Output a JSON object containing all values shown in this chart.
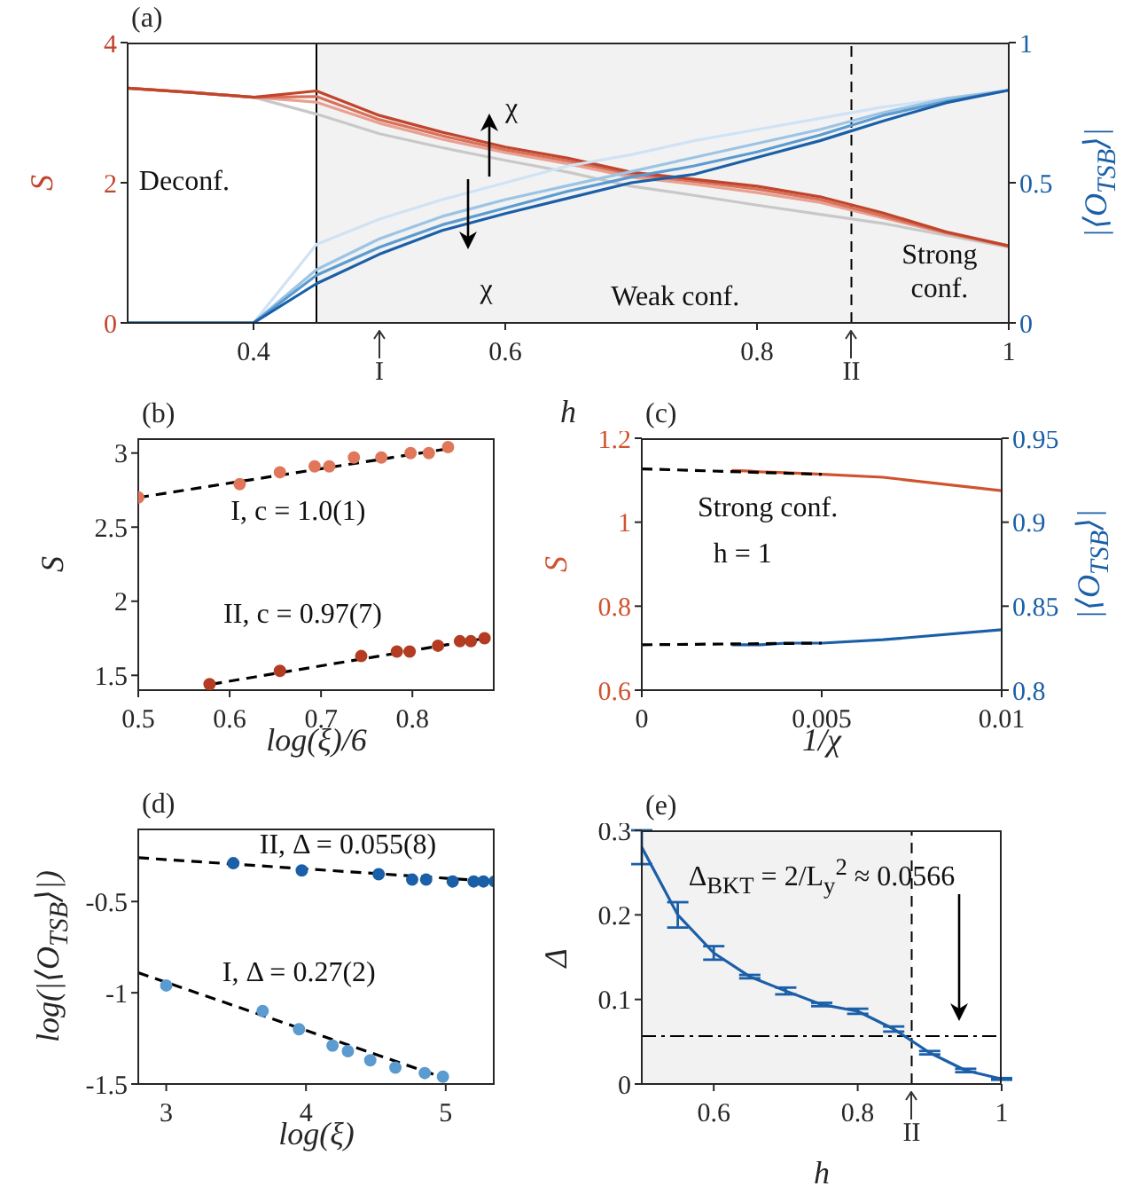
{
  "chart_data": [
    {
      "type": "line",
      "title": "(a)",
      "xlabel": "h",
      "ylabel": "S",
      "y2label": "|⟨O$_{TSB}$⟩|",
      "xlim": [
        0.3,
        1
      ],
      "xticks": [
        0.4,
        0.6,
        0.8,
        1
      ],
      "ylim": [
        0,
        4
      ],
      "yticks": [
        0,
        2,
        4
      ],
      "y2lim": [
        0,
        1
      ],
      "y2ticks": [
        0,
        0.5,
        1
      ],
      "x": [
        0.3,
        0.35,
        0.4,
        0.45,
        0.5,
        0.55,
        0.6,
        0.65,
        0.7,
        0.75,
        0.8,
        0.85,
        0.9,
        0.95,
        1
      ],
      "series": [
        {
          "color": "#c8c8c8",
          "values": [
            3.35,
            3.29,
            3.22,
            2.98,
            2.7,
            2.5,
            2.32,
            2.15,
            1.95,
            1.82,
            1.68,
            1.55,
            1.42,
            1.25,
            1.08
          ]
        },
        {
          "color": "#e8a090",
          "values": [
            3.35,
            3.29,
            3.22,
            3.15,
            2.85,
            2.62,
            2.43,
            2.27,
            2.08,
            1.98,
            1.86,
            1.72,
            1.5,
            1.28,
            1.09
          ]
        },
        {
          "color": "#d9705a",
          "values": [
            3.35,
            3.29,
            3.22,
            3.23,
            2.9,
            2.67,
            2.47,
            2.31,
            2.12,
            2.02,
            1.91,
            1.76,
            1.53,
            1.29,
            1.1
          ]
        },
        {
          "color": "#c0452c",
          "values": [
            3.35,
            3.29,
            3.22,
            3.31,
            2.96,
            2.72,
            2.51,
            2.35,
            2.15,
            2.05,
            1.95,
            1.8,
            1.57,
            1.3,
            1.1
          ]
        },
        {
          "color": "#cfe3f5",
          "axis": "y2",
          "values": [
            0,
            0,
            0,
            0.28,
            0.37,
            0.44,
            0.5,
            0.56,
            0.6,
            0.65,
            0.69,
            0.73,
            0.77,
            0.8,
            0.83
          ]
        },
        {
          "color": "#9cc4e4",
          "axis": "y2",
          "values": [
            0,
            0,
            0,
            0.19,
            0.3,
            0.38,
            0.44,
            0.49,
            0.54,
            0.59,
            0.64,
            0.69,
            0.75,
            0.8,
            0.83
          ]
        },
        {
          "color": "#5b9bd0",
          "axis": "y2",
          "values": [
            0,
            0,
            0,
            0.17,
            0.27,
            0.35,
            0.41,
            0.47,
            0.52,
            0.56,
            0.61,
            0.67,
            0.74,
            0.79,
            0.83
          ]
        },
        {
          "color": "#1a5fa8",
          "axis": "y2",
          "values": [
            0,
            0,
            0,
            0.14,
            0.245,
            0.33,
            0.39,
            0.445,
            0.5,
            0.53,
            0.59,
            0.65,
            0.72,
            0.785,
            0.83
          ]
        }
      ],
      "bands": [
        {
          "axis": "x",
          "from": 0.45,
          "to": 1,
          "color": "#f2f2f2"
        }
      ],
      "ref_lines": [
        {
          "axis": "x",
          "value": 0.45,
          "color": "#000000",
          "line_style": "solid"
        },
        {
          "axis": "x",
          "value": 0.875,
          "color": "#000000",
          "line_style": "dashed"
        }
      ],
      "annotations": [
        "Deconf.",
        "Weak conf.",
        "Strong\nconf.",
        "χ",
        "χ",
        "I",
        "II"
      ]
    },
    {
      "type": "scatter",
      "title": "(b)",
      "xlabel": "log(ξ)/6",
      "ylabel": "S",
      "xlim": [
        0.5,
        0.89
      ],
      "xticks": [
        0.5,
        0.6,
        0.7,
        0.8
      ],
      "ylim": [
        1.4,
        3.1
      ],
      "yticks": [
        1.5,
        2,
        2.5,
        3
      ],
      "series": [
        {
          "color": "#e0775a",
          "marker": "circle",
          "x": [
            0.5,
            0.611,
            0.655,
            0.693,
            0.709,
            0.736,
            0.766,
            0.798,
            0.818,
            0.839
          ],
          "values": [
            2.7,
            2.79,
            2.87,
            2.91,
            2.91,
            2.97,
            2.97,
            3.0,
            3.0,
            3.04
          ]
        },
        {
          "color": "#b33c22",
          "marker": "circle",
          "x": [
            0.578,
            0.655,
            0.744,
            0.783,
            0.797,
            0.828,
            0.852,
            0.864,
            0.879
          ],
          "values": [
            1.44,
            1.53,
            1.63,
            1.66,
            1.66,
            1.7,
            1.73,
            1.73,
            1.75
          ]
        },
        {
          "type": "line",
          "color": "#000000",
          "line_style": "dashed",
          "x": [
            0.5,
            0.84
          ],
          "values": [
            2.7,
            3.03
          ]
        },
        {
          "type": "line",
          "color": "#000000",
          "line_style": "dashed",
          "x": [
            0.58,
            0.88
          ],
          "values": [
            1.44,
            1.75
          ]
        }
      ],
      "annotations": [
        "I, c = 1.0(1)",
        "II, c = 0.97(7)"
      ]
    },
    {
      "type": "line",
      "title": "(c)",
      "xlabel": "1/χ",
      "ylabel": "S",
      "y2label": "|⟨O$_{TSB}$⟩|",
      "xlim": [
        0,
        0.01
      ],
      "xticks": [
        0,
        0.005,
        0.01
      ],
      "ylim": [
        0.6,
        1.2
      ],
      "yticks": [
        0.6,
        0.8,
        1,
        1.2
      ],
      "y2lim": [
        0.8,
        0.95
      ],
      "y2ticks": [
        0.8,
        0.85,
        0.9,
        0.95
      ],
      "series": [
        {
          "color": "#d0532f",
          "x": [
            0.0025,
            0.0029,
            0.0033,
            0.004,
            0.005,
            0.0067,
            0.01
          ],
          "values": [
            1.123,
            1.122,
            1.12,
            1.118,
            1.114,
            1.107,
            1.075
          ]
        },
        {
          "color": "#1a5fa8",
          "axis": "y2",
          "x": [
            0.0025,
            0.0029,
            0.0033,
            0.004,
            0.005,
            0.0067,
            0.01
          ],
          "values": [
            0.827,
            0.827,
            0.827,
            0.828,
            0.828,
            0.83,
            0.836
          ]
        },
        {
          "color": "#000000",
          "line_style": "dashed",
          "x": [
            0,
            0.005
          ],
          "values": [
            1.127,
            1.114
          ]
        },
        {
          "color": "#000000",
          "line_style": "dashed",
          "axis": "y2",
          "x": [
            0,
            0.005
          ],
          "values": [
            0.827,
            0.828
          ]
        }
      ],
      "annotations": [
        "Strong conf.",
        "h = 1"
      ]
    },
    {
      "type": "scatter",
      "title": "(d)",
      "xlabel": "log(ξ)",
      "ylabel": "log(|⟨O$_{TSB}$⟩|)",
      "xlim": [
        2.8,
        5.35
      ],
      "xticks": [
        3,
        4,
        5
      ],
      "ylim": [
        -1.5,
        -0.1
      ],
      "yticks": [
        -1.5,
        -1,
        -0.5
      ],
      "series": [
        {
          "color": "#1a5fa8",
          "marker": "circle",
          "x": [
            3.48,
            3.97,
            4.52,
            4.76,
            4.86,
            5.05,
            5.2,
            5.27,
            5.35
          ],
          "values": [
            -0.29,
            -0.33,
            -0.35,
            -0.38,
            -0.38,
            -0.39,
            -0.39,
            -0.39,
            -0.39
          ]
        },
        {
          "color": "#5b9bd0",
          "marker": "circle",
          "x": [
            3.0,
            3.69,
            3.95,
            4.19,
            4.3,
            4.46,
            4.64,
            4.85,
            4.98
          ],
          "values": [
            -0.96,
            -1.1,
            -1.2,
            -1.29,
            -1.32,
            -1.37,
            -1.41,
            -1.44,
            -1.46
          ]
        },
        {
          "type": "line",
          "color": "#000000",
          "line_style": "dashed",
          "x": [
            2.8,
            5.35
          ],
          "values": [
            -0.26,
            -0.39
          ]
        },
        {
          "type": "line",
          "color": "#000000",
          "line_style": "dashed",
          "x": [
            2.8,
            5.0
          ],
          "values": [
            -0.89,
            -1.47
          ]
        }
      ],
      "annotations": [
        "II, Δ = 0.055(8)",
        "I, Δ = 0.27(2)"
      ]
    },
    {
      "type": "line",
      "title": "(e)",
      "xlabel": "h",
      "ylabel": "Δ",
      "xlim": [
        0.5,
        1
      ],
      "xticks": [
        0.6,
        0.8,
        1
      ],
      "ylim": [
        0,
        0.3
      ],
      "yticks": [
        0,
        0.1,
        0.2,
        0.3
      ],
      "series": [
        {
          "color": "#1a5fa8",
          "x": [
            0.5,
            0.55,
            0.6,
            0.65,
            0.7,
            0.75,
            0.8,
            0.85,
            0.9,
            0.95,
            1
          ],
          "values": [
            0.28,
            0.2,
            0.155,
            0.127,
            0.11,
            0.094,
            0.086,
            0.065,
            0.037,
            0.016,
            0.006
          ],
          "errors": [
            0.02,
            0.015,
            0.008,
            0.002,
            0.004,
            0.002,
            0.003,
            0.003,
            0.002,
            0.002,
            0.001
          ]
        }
      ],
      "bands": [
        {
          "axis": "x",
          "from": 0.5,
          "to": 0.875,
          "color": "#f2f2f2"
        }
      ],
      "ref_lines": [
        {
          "axis": "x",
          "value": 0.875,
          "color": "#000000",
          "line_style": "dashed"
        },
        {
          "axis": "y",
          "value": 0.0566,
          "color": "#000000",
          "line_style": "dashdot"
        }
      ],
      "annotations": [
        "Δ$_{BKT}$ = 2/L$_{y}$$^{2}$ ≈ 0.0566",
        "II"
      ]
    }
  ]
}
